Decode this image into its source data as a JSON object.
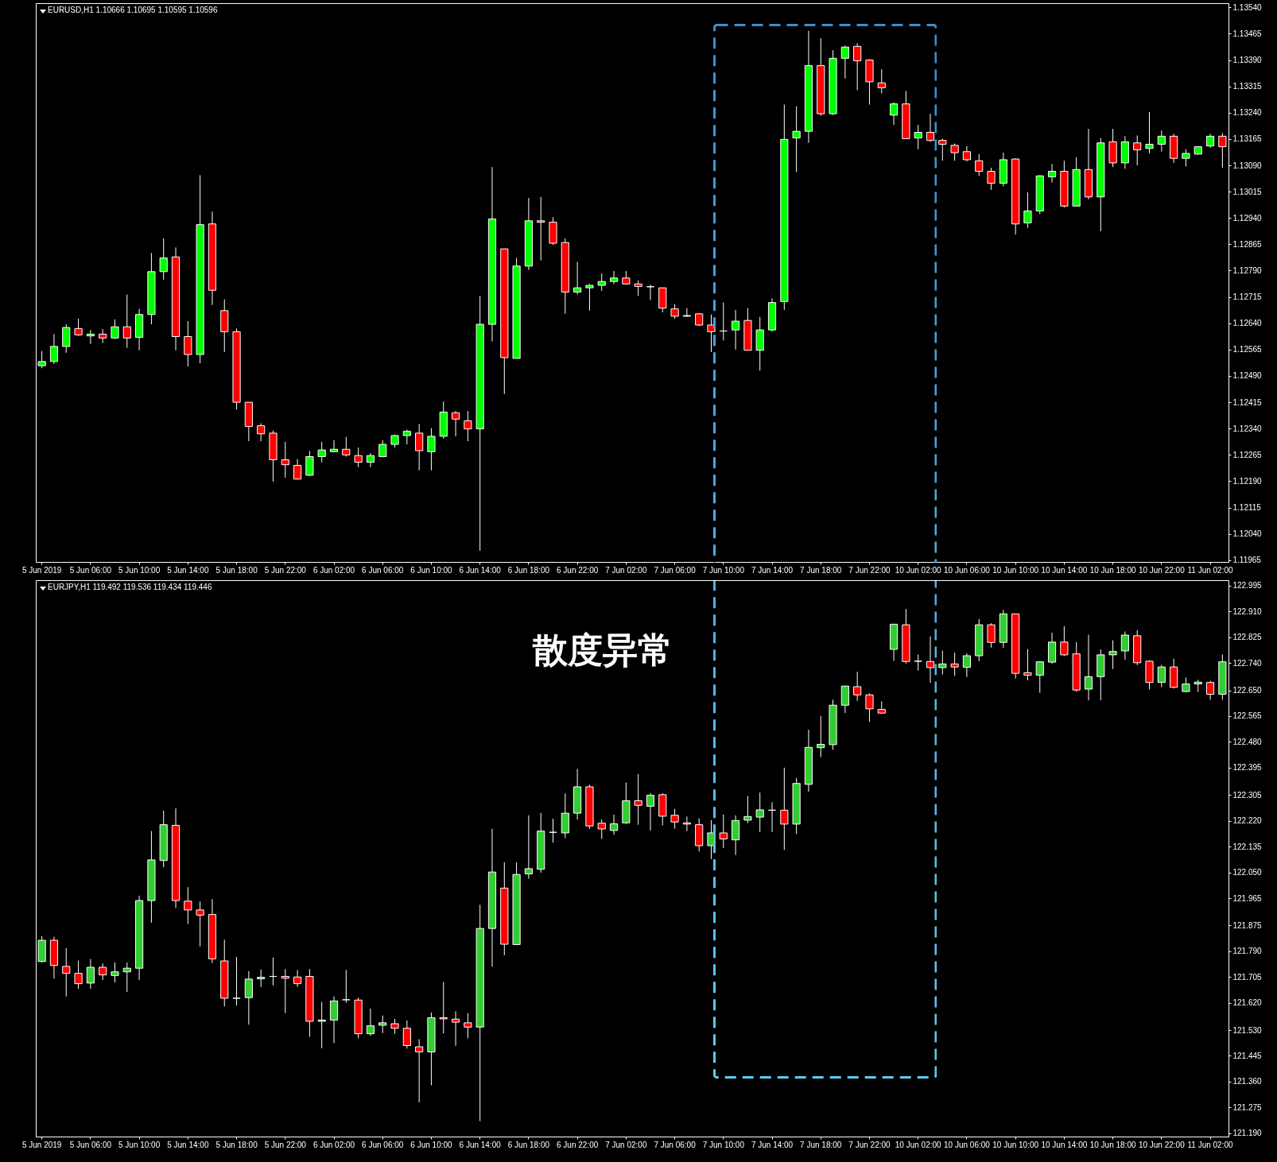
{
  "chart_data": [
    {
      "type": "candlestick",
      "title": "EURUSD,H1  1.10666 1.10695 1.10595 1.10596",
      "colors": [
        "#00ff00",
        "#00ff00",
        "#00ff00",
        "#ff0000",
        "#00ff00",
        "#ff0000",
        "#00ff00",
        "#ff0000",
        "#00ff00",
        "#00ff00",
        "#00ff00",
        "#ff0000",
        "#ff0000",
        "#00ff00",
        "#ff0000",
        "#ff0000",
        "#ff0000",
        "#ff0000",
        "#ff0000",
        "#ff0000",
        "#ff0000",
        "#ff0000",
        "#00ff00",
        "#00ff00",
        "#00ff00",
        "#ff0000",
        "#ff0000",
        "#00ff00",
        "#00ff00",
        "#00ff00",
        "#00ff00",
        "#ff0000",
        "#00ff00",
        "#00ff00",
        "#ff0000",
        "#ff0000",
        "#00ff00",
        "#00ff00",
        "#ff0000",
        "#00ff00",
        "#00ff00",
        "#ff0000",
        "#ff0000",
        "#ff0000",
        "#00ff00",
        "#00ff00",
        "#00ff00",
        "#00ff00",
        "#ff0000",
        "#ff0000",
        "#ffffff",
        "#ff0000",
        "#ff0000",
        "#00ff00",
        "#ff0000",
        "#ff0000",
        "#ffffff",
        "#00ff00",
        "#ff0000",
        "#00ff00",
        "#00ff00",
        "#00ff00",
        "#00ff00",
        "#00ff00",
        "#ff0000",
        "#00ff00",
        "#00ff00",
        "#ff0000",
        "#ff0000",
        "#ff0000",
        "#00ff00",
        "#ff0000",
        "#00ff00",
        "#ff0000",
        "#ff0000",
        "#ff0000",
        "#ff0000",
        "#ff0000",
        "#ff0000",
        "#00ff00",
        "#ff0000",
        "#00ff00",
        "#00ff00",
        "#00ff00",
        "#ff0000",
        "#00ff00",
        "#ff0000",
        "#00ff00",
        "#ff0000",
        "#00ff00",
        "#ff0000",
        "#00ff00",
        "#00ff00",
        "#ff0000",
        "#00ff00",
        "#00ff00",
        "#00ff00",
        "#ff0000"
      ],
      "categories": [
        "5 Jun 2019",
        null,
        null,
        null,
        "5 Jun 06:00",
        null,
        null,
        null,
        "5 Jun 10:00",
        null,
        null,
        null,
        "5 Jun 14:00",
        null,
        null,
        null,
        "5 Jun 18:00",
        null,
        null,
        null,
        "5 Jun 22:00",
        null,
        null,
        null,
        "6 Jun 02:00",
        null,
        null,
        null,
        "6 Jun 06:00",
        null,
        null,
        null,
        "6 Jun 10:00",
        null,
        null,
        null,
        "6 Jun 14:00",
        null,
        null,
        null,
        "6 Jun 18:00",
        null,
        null,
        null,
        "6 Jun 22:00",
        null,
        null,
        null,
        "7 Jun 02:00",
        null,
        null,
        null,
        "7 Jun 06:00",
        null,
        null,
        null,
        "7 Jun 10:00",
        null,
        null,
        null,
        "7 Jun 14:00",
        null,
        null,
        null,
        "7 Jun 18:00",
        null,
        null,
        null,
        "7 Jun 22:00",
        null,
        null,
        null,
        "10 Jun 02:00",
        null,
        null,
        null,
        "10 Jun 06:00",
        null,
        null,
        null,
        "10 Jun 10:00",
        null,
        null,
        null,
        "10 Jun 14:00",
        null,
        null,
        null,
        "10 Jun 18:00",
        null,
        null,
        null,
        "10 Jun 22:00",
        null,
        null,
        null,
        "11 Jun 02:00",
        null
      ],
      "ohlc": [
        [
          1.12519,
          1.12561,
          1.12512,
          1.12531
        ],
        [
          1.12531,
          1.12609,
          1.12524,
          1.12574
        ],
        [
          1.12574,
          1.12637,
          1.12556,
          1.12628
        ],
        [
          1.12625,
          1.12653,
          1.12604,
          1.12607
        ],
        [
          1.12604,
          1.12621,
          1.12581,
          1.12609
        ],
        [
          1.12609,
          1.12623,
          1.12584,
          1.12598
        ],
        [
          1.12598,
          1.12651,
          1.12595,
          1.1263
        ],
        [
          1.1263,
          1.12722,
          1.1257,
          1.12598
        ],
        [
          1.126,
          1.12681,
          1.12563,
          1.12665
        ],
        [
          1.12665,
          1.1284,
          1.12637,
          1.12787
        ],
        [
          1.12787,
          1.12882,
          1.12764,
          1.12826
        ],
        [
          1.12829,
          1.12856,
          1.12563,
          1.12602
        ],
        [
          1.12602,
          1.12646,
          1.12517,
          1.12551
        ],
        [
          1.12551,
          1.13062,
          1.12526,
          1.12921
        ],
        [
          1.12923,
          1.12958,
          1.12692,
          1.12734
        ],
        [
          1.12676,
          1.12708,
          1.12558,
          1.12616
        ],
        [
          1.12616,
          1.12625,
          1.12394,
          1.12415
        ],
        [
          1.12415,
          1.12415,
          1.12304,
          1.12346
        ],
        [
          1.12348,
          1.12355,
          1.12304,
          1.12325
        ],
        [
          1.12327,
          1.12334,
          1.12189,
          1.12251
        ],
        [
          1.12251,
          1.12302,
          1.122,
          1.12237
        ],
        [
          1.12235,
          1.12253,
          1.12196,
          1.12196
        ],
        [
          1.12207,
          1.12276,
          1.12205,
          1.1226
        ],
        [
          1.1226,
          1.12302,
          1.12244,
          1.12279
        ],
        [
          1.12274,
          1.12307,
          1.12274,
          1.12281
        ],
        [
          1.12281,
          1.12316,
          1.1226,
          1.12265
        ],
        [
          1.12263,
          1.12286,
          1.1223,
          1.12244
        ],
        [
          1.12244,
          1.1227,
          1.1223,
          1.12263
        ],
        [
          1.1226,
          1.12307,
          1.12258,
          1.12295
        ],
        [
          1.12295,
          1.12323,
          1.12286,
          1.1232
        ],
        [
          1.1232,
          1.12337,
          1.12295,
          1.12332
        ],
        [
          1.12327,
          1.12353,
          1.12221,
          1.12277
        ],
        [
          1.12274,
          1.12341,
          1.12221,
          1.12318
        ],
        [
          1.12318,
          1.12417,
          1.12311,
          1.12387
        ],
        [
          1.12385,
          1.1239,
          1.12318,
          1.12367
        ],
        [
          1.12362,
          1.1239,
          1.12304,
          1.12339
        ],
        [
          1.12339,
          1.12718,
          1.11992,
          1.12637
        ],
        [
          1.12637,
          1.13085,
          1.12588,
          1.12937
        ],
        [
          1.12852,
          1.12852,
          1.12438,
          1.12542
        ],
        [
          1.1254,
          1.12826,
          1.1254,
          1.12803
        ],
        [
          1.12803,
          1.12997,
          1.12792,
          1.12932
        ],
        [
          1.12932,
          1.13,
          1.12819,
          1.12928
        ],
        [
          1.12928,
          1.12942,
          1.12863,
          1.12868
        ],
        [
          1.1287,
          1.12882,
          1.12667,
          1.12729
        ],
        [
          1.12729,
          1.12815,
          1.12722,
          1.12741
        ],
        [
          1.12741,
          1.12752,
          1.12676,
          1.12748
        ],
        [
          1.12748,
          1.12782,
          1.12732,
          1.12759
        ],
        [
          1.12759,
          1.12789,
          1.12752,
          1.12769
        ],
        [
          1.12769,
          1.12789,
          1.1275,
          1.12752
        ],
        [
          1.12752,
          1.12762,
          1.12718,
          1.12745
        ],
        [
          1.12744,
          1.1275,
          1.12706,
          1.12744
        ],
        [
          1.12741,
          1.12741,
          1.12671,
          1.12683
        ],
        [
          1.12681,
          1.12695,
          1.12653,
          1.1266
        ],
        [
          1.1266,
          1.12683,
          1.12658,
          1.12662
        ],
        [
          1.12667,
          1.12669,
          1.12632,
          1.12635
        ],
        [
          1.12635,
          1.12665,
          1.12558,
          1.12616
        ],
        [
          1.12618,
          1.12699,
          1.12591,
          1.12618
        ],
        [
          1.12621,
          1.12678,
          1.12565,
          1.12646
        ],
        [
          1.12648,
          1.12683,
          1.12563,
          1.12563
        ],
        [
          1.12563,
          1.12658,
          1.12505,
          1.12621
        ],
        [
          1.12621,
          1.12711,
          1.12616,
          1.12699
        ],
        [
          1.12702,
          1.13263,
          1.12678,
          1.13164
        ],
        [
          1.13168,
          1.13258,
          1.13071,
          1.13187
        ],
        [
          1.13187,
          1.13473,
          1.13154,
          1.13374
        ],
        [
          1.13374,
          1.13452,
          1.13231,
          1.13237
        ],
        [
          1.13237,
          1.13418,
          1.13233,
          1.13395
        ],
        [
          1.13395,
          1.13431,
          1.13337,
          1.13427
        ],
        [
          1.13429,
          1.13438,
          1.13304,
          1.13388
        ],
        [
          1.1339,
          1.13392,
          1.13263,
          1.13328
        ],
        [
          1.13325,
          1.13364,
          1.13295,
          1.13311
        ],
        [
          1.13233,
          1.1327,
          1.13205,
          1.13265
        ],
        [
          1.13265,
          1.13302,
          1.13166,
          1.13166
        ],
        [
          1.13168,
          1.13205,
          1.13136,
          1.13184
        ],
        [
          1.13184,
          1.13237,
          1.13157,
          1.13161
        ],
        [
          1.13161,
          1.13166,
          1.13103,
          1.1315
        ],
        [
          1.13147,
          1.13152,
          1.13103,
          1.13126
        ],
        [
          1.13129,
          1.13145,
          1.13101,
          1.13106
        ],
        [
          1.13103,
          1.13122,
          1.1306,
          1.13073
        ],
        [
          1.13073,
          1.13083,
          1.1302,
          1.13039
        ],
        [
          1.13039,
          1.13126,
          1.1303,
          1.13106
        ],
        [
          1.13108,
          1.1311,
          1.12893,
          1.12923
        ],
        [
          1.12926,
          1.13013,
          1.12912,
          1.1296
        ],
        [
          1.1296,
          1.13062,
          1.12951,
          1.1306
        ],
        [
          1.13057,
          1.13094,
          1.13041,
          1.13073
        ],
        [
          1.13073,
          1.13103,
          1.1297,
          1.12974
        ],
        [
          1.12974,
          1.13113,
          1.12974,
          1.13078
        ],
        [
          1.13078,
          1.13194,
          1.12993,
          1.13
        ],
        [
          1.13,
          1.13168,
          1.12902,
          1.13154
        ],
        [
          1.13157,
          1.13194,
          1.13085,
          1.13097
        ],
        [
          1.13097,
          1.13173,
          1.1308,
          1.13157
        ],
        [
          1.13154,
          1.13175,
          1.1309,
          1.13134
        ],
        [
          1.13138,
          1.13242,
          1.13124,
          1.1315
        ],
        [
          1.1315,
          1.13189,
          1.13129,
          1.13173
        ],
        [
          1.13173,
          1.1318,
          1.13097,
          1.1311
        ],
        [
          1.1311,
          1.13136,
          1.13087,
          1.13124
        ],
        [
          1.13122,
          1.13145,
          1.1312,
          1.13143
        ],
        [
          1.13145,
          1.1318,
          1.1314,
          1.13173
        ],
        [
          1.13173,
          1.13182,
          1.13083,
          1.13143
        ]
      ],
      "ylim": [
        1.1196,
        1.13552
      ],
      "yticks": [
        {
          "value": 1.1354,
          "label": "1.13540"
        },
        {
          "value": 1.13465,
          "label": "1.13465"
        },
        {
          "value": 1.1339,
          "label": "1.13390"
        },
        {
          "value": 1.13315,
          "label": "1.13315"
        },
        {
          "value": 1.1324,
          "label": "1.13240"
        },
        {
          "value": 1.13165,
          "label": "1.13165"
        },
        {
          "value": 1.1309,
          "label": "1.13090"
        },
        {
          "value": 1.13015,
          "label": "1.13015"
        },
        {
          "value": 1.1294,
          "label": "1.12940"
        },
        {
          "value": 1.12865,
          "label": "1.12865"
        },
        {
          "value": 1.1279,
          "label": "1.12790"
        },
        {
          "value": 1.12715,
          "label": "1.12715"
        },
        {
          "value": 1.1264,
          "label": "1.12640"
        },
        {
          "value": 1.12565,
          "label": "1.12565"
        },
        {
          "value": 1.1249,
          "label": "1.12490"
        },
        {
          "value": 1.12415,
          "label": "1.12415"
        },
        {
          "value": 1.1234,
          "label": "1.12340"
        },
        {
          "value": 1.12265,
          "label": "1.12265"
        },
        {
          "value": 1.1219,
          "label": "1.12190"
        },
        {
          "value": 1.12115,
          "label": "1.12115"
        },
        {
          "value": 1.1204,
          "label": "1.12040"
        },
        {
          "value": 1.11965,
          "label": "1.11965"
        }
      ]
    },
    {
      "type": "candlestick",
      "title": "EURJPY,H1  119.492 119.536 119.434 119.446",
      "colors": [
        "#32cd32",
        "#ff0000",
        "#ff0000",
        "#ff0000",
        "#32cd32",
        "#ff0000",
        "#32cd32",
        "#32cd32",
        "#32cd32",
        "#32cd32",
        "#32cd32",
        "#ff0000",
        "#ff0000",
        "#ff0000",
        "#ff0000",
        "#ff0000",
        "#ffffff",
        "#32cd32",
        "#32cd32",
        "#ffffff",
        "#ff0000",
        "#ff0000",
        "#ff0000",
        "#32cd32",
        "#32cd32",
        "#ffffff",
        "#ff0000",
        "#32cd32",
        "#32cd32",
        "#ff0000",
        "#ff0000",
        "#ff0000",
        "#32cd32",
        "#ff0000",
        "#ff0000",
        "#ff0000",
        "#32cd32",
        "#32cd32",
        "#ff0000",
        "#32cd32",
        "#32cd32",
        "#32cd32",
        "#ffffff",
        "#32cd32",
        "#32cd32",
        "#ff0000",
        "#ff0000",
        "#32cd32",
        "#32cd32",
        "#ff0000",
        "#32cd32",
        "#ff0000",
        "#ff0000",
        "#ff0000",
        "#ff0000",
        "#32cd32",
        "#ff0000",
        "#32cd32",
        "#32cd32",
        "#32cd32",
        "#ffffff",
        "#ff0000",
        "#32cd32",
        "#32cd32",
        "#32cd32",
        "#32cd32",
        "#32cd32",
        "#ff0000",
        "#ff0000",
        "#ff0000",
        "#32cd32",
        "#ff0000",
        "#ffffff",
        "#ff0000",
        "#32cd32",
        "#ff0000",
        "#32cd32",
        "#32cd32",
        "#ff0000",
        "#32cd32",
        "#ff0000",
        "#ff0000",
        "#32cd32",
        "#32cd32",
        "#ff0000",
        "#ff0000",
        "#32cd32",
        "#32cd32",
        "#32cd32",
        "#32cd32",
        "#ff0000",
        "#ff0000",
        "#32cd32",
        "#ff0000",
        "#32cd32",
        "#32cd32",
        "#ff0000",
        "#32cd32"
      ],
      "annotations": [
        "散度异常"
      ],
      "categories": [
        "5 Jun 2019",
        null,
        null,
        null,
        "5 Jun 06:00",
        null,
        null,
        null,
        "5 Jun 10:00",
        null,
        null,
        null,
        "5 Jun 14:00",
        null,
        null,
        null,
        "5 Jun 18:00",
        null,
        null,
        null,
        "5 Jun 22:00",
        null,
        null,
        null,
        "6 Jun 02:00",
        null,
        null,
        null,
        "6 Jun 06:00",
        null,
        null,
        null,
        "6 Jun 10:00",
        null,
        null,
        null,
        "6 Jun 14:00",
        null,
        null,
        null,
        "6 Jun 18:00",
        null,
        null,
        null,
        "6 Jun 22:00",
        null,
        null,
        null,
        "7 Jun 02:00",
        null,
        null,
        null,
        "7 Jun 06:00",
        null,
        null,
        null,
        "7 Jun 10:00",
        null,
        null,
        null,
        "7 Jun 14:00",
        null,
        null,
        null,
        "7 Jun 18:00",
        null,
        null,
        null,
        "7 Jun 22:00",
        null,
        null,
        null,
        "10 Jun 02:00",
        null,
        null,
        null,
        "10 Jun 06:00",
        null,
        null,
        null,
        "10 Jun 10:00",
        null,
        null,
        null,
        "10 Jun 14:00",
        null,
        null,
        null,
        "10 Jun 18:00",
        null,
        null,
        null,
        "10 Jun 22:00",
        null,
        null,
        null,
        "11 Jun 02:00",
        null
      ],
      "ohlc": [
        [
          121.756,
          121.84,
          121.753,
          121.826
        ],
        [
          121.826,
          121.838,
          121.7,
          121.743
        ],
        [
          121.74,
          121.8,
          121.641,
          121.717
        ],
        [
          121.717,
          121.759,
          121.666,
          121.683
        ],
        [
          121.685,
          121.764,
          121.666,
          121.737
        ],
        [
          121.737,
          121.75,
          121.695,
          121.712
        ],
        [
          121.71,
          121.753,
          121.687,
          121.722
        ],
        [
          121.722,
          121.753,
          121.656,
          121.734
        ],
        [
          121.734,
          121.973,
          121.695,
          121.957
        ],
        [
          121.957,
          122.186,
          121.884,
          122.091
        ],
        [
          122.089,
          122.253,
          122.067,
          122.207
        ],
        [
          122.205,
          122.261,
          121.932,
          121.957
        ],
        [
          121.955,
          122.001,
          121.88,
          121.926
        ],
        [
          121.926,
          121.954,
          121.806,
          121.909
        ],
        [
          121.911,
          121.962,
          121.751,
          121.765
        ],
        [
          121.758,
          121.828,
          121.608,
          121.635
        ],
        [
          121.635,
          121.771,
          121.611,
          121.635
        ],
        [
          121.637,
          121.724,
          121.548,
          121.698
        ],
        [
          121.699,
          121.73,
          121.672,
          121.704
        ],
        [
          121.707,
          121.769,
          121.677,
          121.707
        ],
        [
          121.707,
          121.731,
          121.586,
          121.701
        ],
        [
          121.705,
          121.728,
          121.672,
          121.683
        ],
        [
          121.707,
          121.731,
          121.508,
          121.559
        ],
        [
          121.559,
          121.623,
          121.47,
          121.563
        ],
        [
          121.563,
          121.641,
          121.487,
          121.626
        ],
        [
          121.63,
          121.728,
          121.62,
          121.63
        ],
        [
          121.629,
          121.637,
          121.503,
          121.518
        ],
        [
          121.518,
          121.601,
          121.511,
          121.544
        ],
        [
          121.546,
          121.578,
          121.52,
          121.554
        ],
        [
          121.551,
          121.567,
          121.518,
          121.536
        ],
        [
          121.536,
          121.562,
          121.469,
          121.479
        ],
        [
          121.475,
          121.5,
          121.292,
          121.458
        ],
        [
          121.458,
          121.588,
          121.348,
          121.571
        ],
        [
          121.571,
          121.689,
          121.519,
          121.567
        ],
        [
          121.566,
          121.592,
          121.478,
          121.556
        ],
        [
          121.554,
          121.586,
          121.503,
          121.54
        ],
        [
          121.54,
          121.943,
          121.23,
          121.865
        ],
        [
          121.865,
          122.194,
          121.739,
          122.051
        ],
        [
          121.998,
          122.083,
          121.777,
          121.813
        ],
        [
          121.812,
          122.083,
          121.81,
          122.043
        ],
        [
          122.045,
          122.238,
          122.029,
          122.062
        ],
        [
          122.06,
          122.246,
          122.049,
          122.186
        ],
        [
          122.182,
          122.227,
          122.148,
          122.182
        ],
        [
          122.18,
          122.31,
          122.163,
          122.245
        ],
        [
          122.245,
          122.391,
          122.224,
          122.332
        ],
        [
          122.332,
          122.339,
          122.193,
          122.203
        ],
        [
          122.212,
          122.224,
          122.16,
          122.193
        ],
        [
          122.188,
          122.24,
          122.174,
          122.21
        ],
        [
          122.213,
          122.346,
          122.21,
          122.286
        ],
        [
          122.286,
          122.374,
          122.207,
          122.271
        ],
        [
          122.268,
          122.311,
          122.188,
          122.304
        ],
        [
          122.306,
          122.311,
          122.205,
          122.235
        ],
        [
          122.238,
          122.259,
          122.194,
          122.216
        ],
        [
          122.213,
          122.234,
          122.186,
          122.209
        ],
        [
          122.207,
          122.228,
          122.119,
          122.138
        ],
        [
          122.138,
          122.222,
          122.094,
          122.18
        ],
        [
          122.18,
          122.24,
          122.13,
          122.16
        ],
        [
          122.157,
          122.238,
          122.107,
          122.221
        ],
        [
          122.222,
          122.302,
          122.212,
          122.234
        ],
        [
          122.232,
          122.313,
          122.183,
          122.256
        ],
        [
          122.255,
          122.281,
          122.183,
          122.255
        ],
        [
          122.255,
          122.395,
          122.124,
          122.209
        ],
        [
          122.209,
          122.361,
          122.176,
          122.343
        ],
        [
          122.34,
          122.52,
          122.316,
          122.462
        ],
        [
          122.461,
          122.566,
          122.43,
          122.472
        ],
        [
          122.471,
          122.619,
          122.454,
          122.601
        ],
        [
          122.601,
          122.664,
          122.575,
          122.664
        ],
        [
          122.662,
          122.711,
          122.615,
          122.635
        ],
        [
          122.635,
          122.64,
          122.546,
          122.589
        ],
        [
          122.587,
          122.613,
          122.575,
          122.575
        ],
        [
          122.785,
          122.868,
          122.747,
          122.868
        ],
        [
          122.866,
          122.918,
          122.738,
          122.745
        ],
        [
          122.746,
          122.768,
          122.715,
          122.746
        ],
        [
          122.745,
          122.828,
          122.675,
          122.725
        ],
        [
          122.725,
          122.781,
          122.702,
          122.737
        ],
        [
          122.737,
          122.774,
          122.698,
          122.727
        ],
        [
          122.726,
          122.772,
          122.694,
          122.764
        ],
        [
          122.764,
          122.885,
          122.746,
          122.866
        ],
        [
          122.866,
          122.871,
          122.791,
          122.808
        ],
        [
          122.808,
          122.915,
          122.79,
          122.902
        ],
        [
          122.902,
          122.902,
          122.689,
          122.706
        ],
        [
          122.708,
          122.786,
          122.683,
          122.7
        ],
        [
          122.7,
          122.744,
          122.642,
          122.744
        ],
        [
          122.743,
          122.84,
          122.738,
          122.809
        ],
        [
          122.809,
          122.861,
          122.763,
          122.767
        ],
        [
          122.77,
          122.809,
          122.645,
          122.651
        ],
        [
          122.654,
          122.833,
          122.617,
          122.695
        ],
        [
          122.695,
          122.785,
          122.617,
          122.767
        ],
        [
          122.767,
          122.815,
          122.72,
          122.778
        ],
        [
          122.78,
          122.844,
          122.751,
          122.832
        ],
        [
          122.83,
          122.848,
          122.733,
          122.741
        ],
        [
          122.746,
          122.749,
          122.653,
          122.676
        ],
        [
          122.676,
          122.734,
          122.66,
          122.727
        ],
        [
          122.727,
          122.754,
          122.656,
          122.66
        ],
        [
          122.646,
          122.692,
          122.644,
          122.671
        ],
        [
          122.671,
          122.685,
          122.644,
          122.677
        ],
        [
          122.676,
          122.681,
          122.619,
          122.637
        ],
        [
          122.637,
          122.768,
          122.619,
          122.744
        ]
      ],
      "ylim": [
        121.179,
        123.013
      ],
      "yticks": [
        {
          "value": 122.995,
          "label": "122.995"
        },
        {
          "value": 122.91,
          "label": "122.910"
        },
        {
          "value": 122.825,
          "label": "122.825"
        },
        {
          "value": 122.74,
          "label": "122.740"
        },
        {
          "value": 122.65,
          "label": "122.650"
        },
        {
          "value": 122.565,
          "label": "122.565"
        },
        {
          "value": 122.48,
          "label": "122.480"
        },
        {
          "value": 122.395,
          "label": "122.395"
        },
        {
          "value": 122.305,
          "label": "122.305"
        },
        {
          "value": 122.22,
          "label": "122.220"
        },
        {
          "value": 122.135,
          "label": "122.135"
        },
        {
          "value": 122.05,
          "label": "122.050"
        },
        {
          "value": 121.965,
          "label": "121.965"
        },
        {
          "value": 121.875,
          "label": "121.875"
        },
        {
          "value": 121.79,
          "label": "121.790"
        },
        {
          "value": 121.705,
          "label": "121.705"
        },
        {
          "value": 121.62,
          "label": "121.620"
        },
        {
          "value": 121.53,
          "label": "121.530"
        },
        {
          "value": 121.445,
          "label": "121.445"
        },
        {
          "value": 121.36,
          "label": "121.360"
        },
        {
          "value": 121.275,
          "label": "121.275"
        },
        {
          "value": 121.19,
          "label": "121.190"
        }
      ]
    }
  ]
}
